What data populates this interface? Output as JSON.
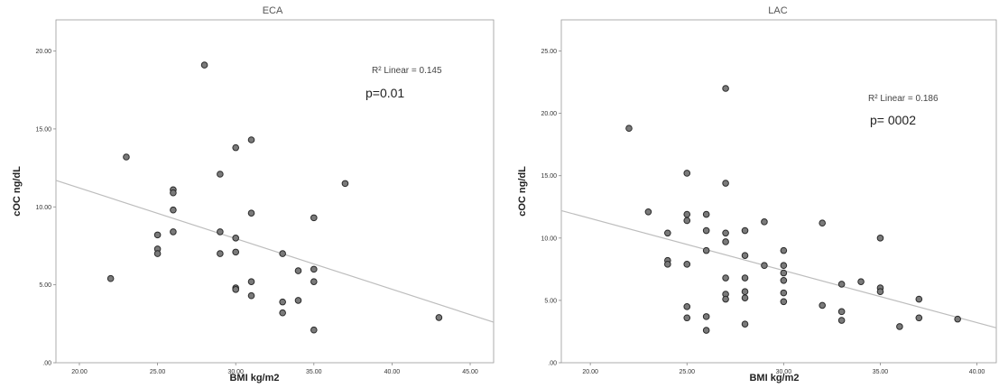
{
  "chart_data": [
    {
      "type": "scatter",
      "title": "ECA",
      "xlabel": "BMI kg/m2",
      "ylabel": "cOC ng/dL",
      "xlim": [
        18.5,
        46.5
      ],
      "ylim": [
        0,
        22
      ],
      "x_ticks": [
        "20.00",
        "25.00",
        "30.00",
        "35.00",
        "40.00",
        "45.00"
      ],
      "y_ticks": [
        ".00",
        "5.00",
        "10.00",
        "15.00",
        "20.00"
      ],
      "r2_label": "R² Linear = 0.145",
      "p_label": "p=0.01",
      "fit_line": {
        "x": [
          18.5,
          46.5
        ],
        "y": [
          11.7,
          2.6
        ]
      },
      "points": [
        {
          "x": 22,
          "y": 5.4
        },
        {
          "x": 23,
          "y": 13.2
        },
        {
          "x": 25,
          "y": 8.2
        },
        {
          "x": 25,
          "y": 7.3
        },
        {
          "x": 25,
          "y": 7.0
        },
        {
          "x": 26,
          "y": 11.1
        },
        {
          "x": 26,
          "y": 10.9
        },
        {
          "x": 26,
          "y": 9.8
        },
        {
          "x": 26,
          "y": 8.4
        },
        {
          "x": 28,
          "y": 19.1
        },
        {
          "x": 29,
          "y": 12.1
        },
        {
          "x": 29,
          "y": 8.4
        },
        {
          "x": 29,
          "y": 7.0
        },
        {
          "x": 30,
          "y": 13.8
        },
        {
          "x": 30,
          "y": 8.0
        },
        {
          "x": 30,
          "y": 7.1
        },
        {
          "x": 30,
          "y": 4.8
        },
        {
          "x": 30,
          "y": 4.7
        },
        {
          "x": 31,
          "y": 14.3
        },
        {
          "x": 31,
          "y": 9.6
        },
        {
          "x": 31,
          "y": 5.2
        },
        {
          "x": 31,
          "y": 4.3
        },
        {
          "x": 33,
          "y": 7.0
        },
        {
          "x": 33,
          "y": 3.9
        },
        {
          "x": 33,
          "y": 3.2
        },
        {
          "x": 34,
          "y": 5.9
        },
        {
          "x": 34,
          "y": 4.0
        },
        {
          "x": 35,
          "y": 9.3
        },
        {
          "x": 35,
          "y": 6.0
        },
        {
          "x": 35,
          "y": 5.2
        },
        {
          "x": 35,
          "y": 2.1
        },
        {
          "x": 37,
          "y": 11.5
        },
        {
          "x": 43,
          "y": 2.9
        }
      ]
    },
    {
      "type": "scatter",
      "title": "LAC",
      "xlabel": "BMI kg/m2",
      "ylabel": "cOC ng/dL",
      "xlim": [
        18.5,
        41
      ],
      "ylim": [
        0,
        27.5
      ],
      "x_ticks": [
        "20.00",
        "25.00",
        "30.00",
        "35.00",
        "40.00"
      ],
      "y_ticks": [
        ".00",
        "5.00",
        "10.00",
        "15.00",
        "20.00",
        "25.00"
      ],
      "r2_label": "R² Linear = 0.186",
      "p_label": "p= 0002",
      "fit_line": {
        "x": [
          18.5,
          41
        ],
        "y": [
          12.2,
          2.8
        ]
      },
      "points": [
        {
          "x": 22,
          "y": 18.8
        },
        {
          "x": 23,
          "y": 12.1
        },
        {
          "x": 24,
          "y": 10.4
        },
        {
          "x": 24,
          "y": 8.2
        },
        {
          "x": 24,
          "y": 7.9
        },
        {
          "x": 25,
          "y": 15.2
        },
        {
          "x": 25,
          "y": 11.9
        },
        {
          "x": 25,
          "y": 11.4
        },
        {
          "x": 25,
          "y": 7.9
        },
        {
          "x": 25,
          "y": 4.5
        },
        {
          "x": 25,
          "y": 3.6
        },
        {
          "x": 26,
          "y": 11.9
        },
        {
          "x": 26,
          "y": 10.6
        },
        {
          "x": 26,
          "y": 9.0
        },
        {
          "x": 26,
          "y": 3.7
        },
        {
          "x": 26,
          "y": 2.6
        },
        {
          "x": 27,
          "y": 22.0
        },
        {
          "x": 27,
          "y": 14.4
        },
        {
          "x": 27,
          "y": 10.4
        },
        {
          "x": 27,
          "y": 9.7
        },
        {
          "x": 27,
          "y": 6.8
        },
        {
          "x": 27,
          "y": 5.5
        },
        {
          "x": 27,
          "y": 5.1
        },
        {
          "x": 28,
          "y": 10.6
        },
        {
          "x": 28,
          "y": 8.6
        },
        {
          "x": 28,
          "y": 6.8
        },
        {
          "x": 28,
          "y": 5.7
        },
        {
          "x": 28,
          "y": 5.2
        },
        {
          "x": 28,
          "y": 3.1
        },
        {
          "x": 29,
          "y": 11.3
        },
        {
          "x": 29,
          "y": 7.8
        },
        {
          "x": 30,
          "y": 9.0
        },
        {
          "x": 30,
          "y": 7.8
        },
        {
          "x": 30,
          "y": 7.2
        },
        {
          "x": 30,
          "y": 6.6
        },
        {
          "x": 30,
          "y": 5.6
        },
        {
          "x": 30,
          "y": 4.9
        },
        {
          "x": 32,
          "y": 11.2
        },
        {
          "x": 32,
          "y": 4.6
        },
        {
          "x": 33,
          "y": 6.3
        },
        {
          "x": 33,
          "y": 4.1
        },
        {
          "x": 33,
          "y": 3.4
        },
        {
          "x": 34,
          "y": 6.5
        },
        {
          "x": 35,
          "y": 10.0
        },
        {
          "x": 35,
          "y": 6.0
        },
        {
          "x": 35,
          "y": 5.7
        },
        {
          "x": 36,
          "y": 2.9
        },
        {
          "x": 37,
          "y": 5.1
        },
        {
          "x": 37,
          "y": 3.6
        },
        {
          "x": 39,
          "y": 3.5
        }
      ]
    }
  ],
  "colors": {
    "point_fill": "#7a7a7a",
    "point_stroke": "#2a2a2a",
    "fit_line": "#bdbdbd",
    "axis": "#888888"
  }
}
